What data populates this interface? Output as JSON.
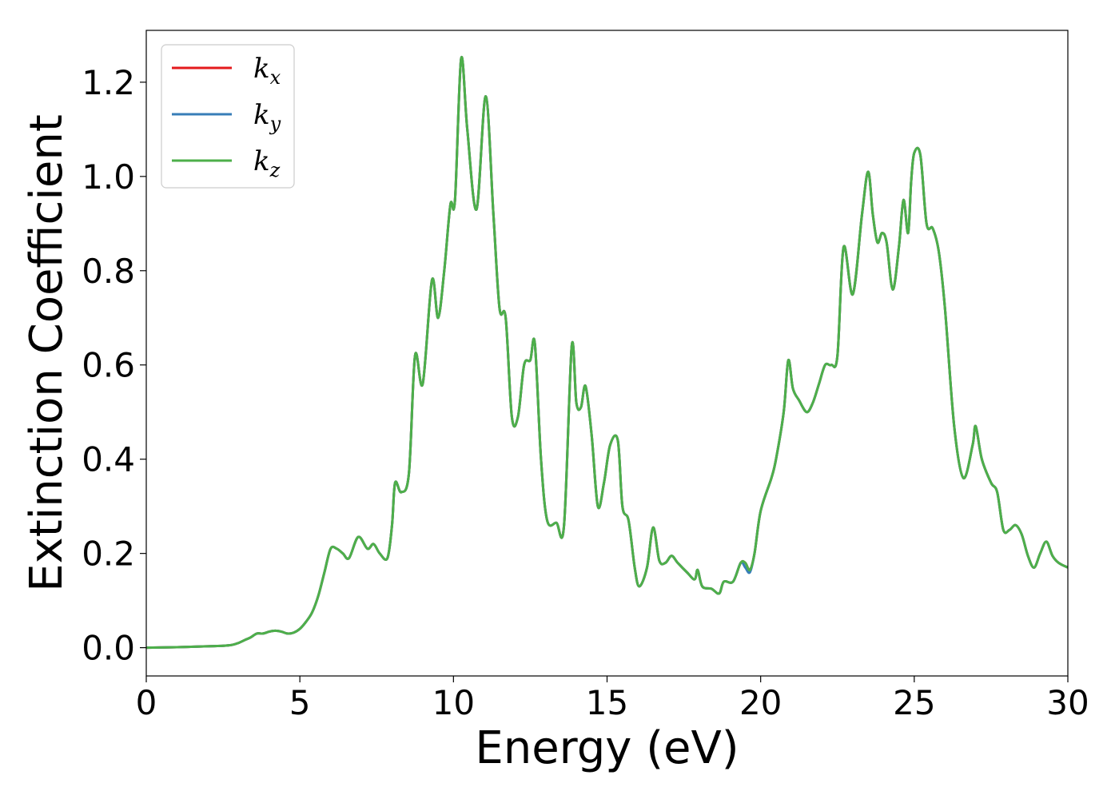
{
  "chart_data": {
    "type": "line",
    "xlabel": "Energy (eV)",
    "ylabel": "Extinction Coefficient",
    "xlim": [
      0,
      30
    ],
    "ylim": [
      -0.06,
      1.31
    ],
    "xticks": [
      0,
      5,
      10,
      15,
      20,
      25,
      30
    ],
    "yticks": [
      0.0,
      0.2,
      0.4,
      0.6,
      0.8,
      1.0,
      1.2
    ],
    "xtick_labels": [
      "0",
      "5",
      "10",
      "15",
      "20",
      "25",
      "30"
    ],
    "ytick_labels": [
      "0.0",
      "0.2",
      "0.4",
      "0.6",
      "0.8",
      "1.0",
      "1.2"
    ],
    "grid": false,
    "legend_position": "top-left",
    "series": [
      {
        "name": "k",
        "subscript": "x",
        "color": "#e41a1c",
        "x": [
          0,
          1,
          2,
          2.5,
          2.8,
          3.0,
          3.2,
          3.4,
          3.6,
          3.8,
          4.0,
          4.2,
          4.4,
          4.6,
          4.8,
          5.0,
          5.2,
          5.4,
          5.6,
          5.8,
          6.0,
          6.2,
          6.4,
          6.6,
          6.9,
          7.2,
          7.4,
          7.6,
          7.85,
          8.0,
          8.1,
          8.3,
          8.55,
          8.75,
          9.0,
          9.3,
          9.5,
          9.7,
          9.9,
          10.05,
          10.25,
          10.45,
          10.75,
          11.05,
          11.3,
          11.5,
          11.7,
          11.9,
          12.1,
          12.3,
          12.5,
          12.65,
          12.85,
          13.05,
          13.35,
          13.6,
          13.85,
          14.0,
          14.15,
          14.3,
          14.5,
          14.7,
          14.9,
          15.1,
          15.35,
          15.5,
          15.7,
          15.9,
          16.05,
          16.3,
          16.5,
          16.7,
          16.9,
          17.1,
          17.3,
          17.6,
          17.85,
          17.95,
          18.1,
          18.4,
          18.65,
          18.8,
          19.1,
          19.35,
          19.5,
          19.65,
          19.8,
          20.0,
          20.35,
          20.5,
          20.75,
          20.9,
          21.05,
          21.25,
          21.5,
          21.7,
          21.9,
          22.1,
          22.3,
          22.5,
          22.7,
          23.0,
          23.3,
          23.5,
          23.65,
          23.8,
          23.95,
          24.1,
          24.3,
          24.5,
          24.65,
          24.8,
          24.9,
          25.0,
          25.2,
          25.4,
          25.6,
          25.8,
          26.0,
          26.3,
          26.6,
          26.9,
          27.0,
          27.2,
          27.5,
          27.7,
          27.9,
          28.1,
          28.3,
          28.5,
          28.7,
          28.9,
          29.1,
          29.3,
          29.5,
          29.7,
          30
        ],
        "values": [
          0,
          0.001,
          0.003,
          0.004,
          0.006,
          0.01,
          0.016,
          0.022,
          0.03,
          0.03,
          0.034,
          0.036,
          0.034,
          0.03,
          0.032,
          0.04,
          0.055,
          0.075,
          0.11,
          0.16,
          0.21,
          0.21,
          0.2,
          0.19,
          0.235,
          0.21,
          0.22,
          0.2,
          0.19,
          0.26,
          0.35,
          0.33,
          0.37,
          0.62,
          0.56,
          0.78,
          0.7,
          0.8,
          0.94,
          0.95,
          1.25,
          1.1,
          0.93,
          1.17,
          0.92,
          0.72,
          0.7,
          0.49,
          0.49,
          0.6,
          0.61,
          0.645,
          0.4,
          0.27,
          0.265,
          0.26,
          0.64,
          0.52,
          0.51,
          0.555,
          0.45,
          0.3,
          0.35,
          0.43,
          0.44,
          0.3,
          0.27,
          0.17,
          0.13,
          0.17,
          0.255,
          0.185,
          0.18,
          0.195,
          0.18,
          0.16,
          0.145,
          0.165,
          0.13,
          0.125,
          0.115,
          0.14,
          0.14,
          0.18,
          0.18,
          0.165,
          0.2,
          0.29,
          0.36,
          0.4,
          0.5,
          0.61,
          0.55,
          0.525,
          0.5,
          0.52,
          0.56,
          0.6,
          0.6,
          0.62,
          0.85,
          0.75,
          0.92,
          1.01,
          0.92,
          0.86,
          0.88,
          0.86,
          0.76,
          0.85,
          0.95,
          0.88,
          0.99,
          1.05,
          1.045,
          0.9,
          0.89,
          0.84,
          0.72,
          0.47,
          0.36,
          0.43,
          0.47,
          0.4,
          0.35,
          0.33,
          0.25,
          0.25,
          0.26,
          0.24,
          0.195,
          0.17,
          0.2,
          0.225,
          0.195,
          0.18,
          0.17
        ]
      },
      {
        "name": "k",
        "subscript": "y",
        "color": "#377eb8",
        "x": [
          0,
          1,
          2,
          2.5,
          2.8,
          3.0,
          3.2,
          3.4,
          3.6,
          3.8,
          4.0,
          4.2,
          4.4,
          4.6,
          4.8,
          5.0,
          5.2,
          5.4,
          5.6,
          5.8,
          6.0,
          6.2,
          6.4,
          6.6,
          6.9,
          7.2,
          7.4,
          7.6,
          7.85,
          8.0,
          8.1,
          8.3,
          8.55,
          8.75,
          9.0,
          9.3,
          9.5,
          9.7,
          9.9,
          10.05,
          10.25,
          10.45,
          10.75,
          11.05,
          11.3,
          11.5,
          11.7,
          11.9,
          12.1,
          12.3,
          12.5,
          12.65,
          12.85,
          13.05,
          13.35,
          13.6,
          13.85,
          14.0,
          14.15,
          14.3,
          14.5,
          14.7,
          14.9,
          15.1,
          15.35,
          15.5,
          15.7,
          15.9,
          16.05,
          16.3,
          16.5,
          16.7,
          16.9,
          17.1,
          17.3,
          17.6,
          17.85,
          17.95,
          18.1,
          18.4,
          18.65,
          18.8,
          19.1,
          19.35,
          19.5,
          19.65,
          19.8,
          20.0,
          20.35,
          20.5,
          20.75,
          20.9,
          21.05,
          21.25,
          21.5,
          21.7,
          21.9,
          22.1,
          22.3,
          22.5,
          22.7,
          23.0,
          23.3,
          23.5,
          23.65,
          23.8,
          23.95,
          24.1,
          24.3,
          24.5,
          24.65,
          24.8,
          24.9,
          25.0,
          25.2,
          25.4,
          25.6,
          25.8,
          26.0,
          26.3,
          26.6,
          26.9,
          27.0,
          27.2,
          27.5,
          27.7,
          27.9,
          28.1,
          28.3,
          28.5,
          28.7,
          28.9,
          29.1,
          29.3,
          29.5,
          29.7,
          30
        ],
        "values": [
          0,
          0.001,
          0.003,
          0.004,
          0.006,
          0.01,
          0.016,
          0.022,
          0.03,
          0.03,
          0.034,
          0.036,
          0.034,
          0.03,
          0.032,
          0.04,
          0.055,
          0.075,
          0.11,
          0.16,
          0.21,
          0.21,
          0.2,
          0.19,
          0.235,
          0.21,
          0.22,
          0.2,
          0.19,
          0.26,
          0.35,
          0.33,
          0.37,
          0.62,
          0.56,
          0.78,
          0.7,
          0.8,
          0.94,
          0.95,
          1.25,
          1.1,
          0.93,
          1.17,
          0.92,
          0.72,
          0.7,
          0.49,
          0.49,
          0.6,
          0.61,
          0.645,
          0.4,
          0.27,
          0.265,
          0.26,
          0.64,
          0.52,
          0.51,
          0.555,
          0.45,
          0.3,
          0.35,
          0.43,
          0.44,
          0.3,
          0.27,
          0.17,
          0.13,
          0.17,
          0.255,
          0.185,
          0.18,
          0.195,
          0.18,
          0.16,
          0.145,
          0.165,
          0.13,
          0.125,
          0.115,
          0.14,
          0.14,
          0.18,
          0.17,
          0.16,
          0.2,
          0.29,
          0.36,
          0.4,
          0.5,
          0.61,
          0.55,
          0.525,
          0.5,
          0.52,
          0.56,
          0.6,
          0.6,
          0.62,
          0.85,
          0.75,
          0.92,
          1.01,
          0.92,
          0.86,
          0.88,
          0.86,
          0.76,
          0.85,
          0.95,
          0.88,
          0.99,
          1.05,
          1.045,
          0.9,
          0.89,
          0.84,
          0.72,
          0.47,
          0.36,
          0.43,
          0.47,
          0.4,
          0.35,
          0.33,
          0.25,
          0.25,
          0.26,
          0.24,
          0.195,
          0.17,
          0.2,
          0.225,
          0.195,
          0.18,
          0.17
        ]
      },
      {
        "name": "k",
        "subscript": "z",
        "color": "#4daf4a",
        "x": [
          0,
          1,
          2,
          2.5,
          2.8,
          3.0,
          3.2,
          3.4,
          3.6,
          3.8,
          4.0,
          4.2,
          4.4,
          4.6,
          4.8,
          5.0,
          5.2,
          5.4,
          5.6,
          5.8,
          6.0,
          6.2,
          6.4,
          6.6,
          6.9,
          7.2,
          7.4,
          7.6,
          7.85,
          8.0,
          8.1,
          8.3,
          8.55,
          8.75,
          9.0,
          9.3,
          9.5,
          9.7,
          9.9,
          10.05,
          10.25,
          10.45,
          10.75,
          11.05,
          11.3,
          11.5,
          11.7,
          11.9,
          12.1,
          12.3,
          12.5,
          12.65,
          12.85,
          13.05,
          13.35,
          13.6,
          13.85,
          14.0,
          14.15,
          14.3,
          14.5,
          14.7,
          14.9,
          15.1,
          15.35,
          15.5,
          15.7,
          15.9,
          16.05,
          16.3,
          16.5,
          16.7,
          16.9,
          17.1,
          17.3,
          17.6,
          17.85,
          17.95,
          18.1,
          18.4,
          18.65,
          18.8,
          19.1,
          19.35,
          19.5,
          19.65,
          19.8,
          20.0,
          20.35,
          20.5,
          20.75,
          20.9,
          21.05,
          21.25,
          21.5,
          21.7,
          21.9,
          22.1,
          22.3,
          22.5,
          22.7,
          23.0,
          23.3,
          23.5,
          23.65,
          23.8,
          23.95,
          24.1,
          24.3,
          24.5,
          24.65,
          24.8,
          24.9,
          25.0,
          25.2,
          25.4,
          25.6,
          25.8,
          26.0,
          26.3,
          26.6,
          26.9,
          27.0,
          27.2,
          27.5,
          27.7,
          27.9,
          28.1,
          28.3,
          28.5,
          28.7,
          28.9,
          29.1,
          29.3,
          29.5,
          29.7,
          30
        ],
        "values": [
          0,
          0.001,
          0.003,
          0.004,
          0.006,
          0.01,
          0.016,
          0.022,
          0.03,
          0.03,
          0.034,
          0.036,
          0.034,
          0.03,
          0.032,
          0.04,
          0.055,
          0.075,
          0.11,
          0.16,
          0.21,
          0.21,
          0.2,
          0.19,
          0.235,
          0.21,
          0.22,
          0.2,
          0.19,
          0.26,
          0.35,
          0.33,
          0.37,
          0.62,
          0.56,
          0.78,
          0.7,
          0.8,
          0.94,
          0.95,
          1.25,
          1.1,
          0.93,
          1.17,
          0.92,
          0.72,
          0.7,
          0.49,
          0.49,
          0.6,
          0.61,
          0.645,
          0.4,
          0.27,
          0.265,
          0.26,
          0.64,
          0.52,
          0.51,
          0.555,
          0.45,
          0.3,
          0.35,
          0.43,
          0.44,
          0.3,
          0.27,
          0.17,
          0.13,
          0.17,
          0.255,
          0.185,
          0.18,
          0.195,
          0.18,
          0.16,
          0.145,
          0.165,
          0.13,
          0.125,
          0.115,
          0.14,
          0.14,
          0.18,
          0.18,
          0.165,
          0.2,
          0.29,
          0.36,
          0.4,
          0.5,
          0.61,
          0.55,
          0.525,
          0.5,
          0.52,
          0.56,
          0.6,
          0.6,
          0.62,
          0.85,
          0.75,
          0.92,
          1.01,
          0.92,
          0.86,
          0.88,
          0.86,
          0.76,
          0.85,
          0.95,
          0.88,
          0.99,
          1.05,
          1.045,
          0.9,
          0.89,
          0.84,
          0.72,
          0.47,
          0.36,
          0.43,
          0.47,
          0.4,
          0.35,
          0.33,
          0.25,
          0.25,
          0.26,
          0.24,
          0.195,
          0.17,
          0.2,
          0.225,
          0.195,
          0.18,
          0.17
        ]
      }
    ]
  }
}
